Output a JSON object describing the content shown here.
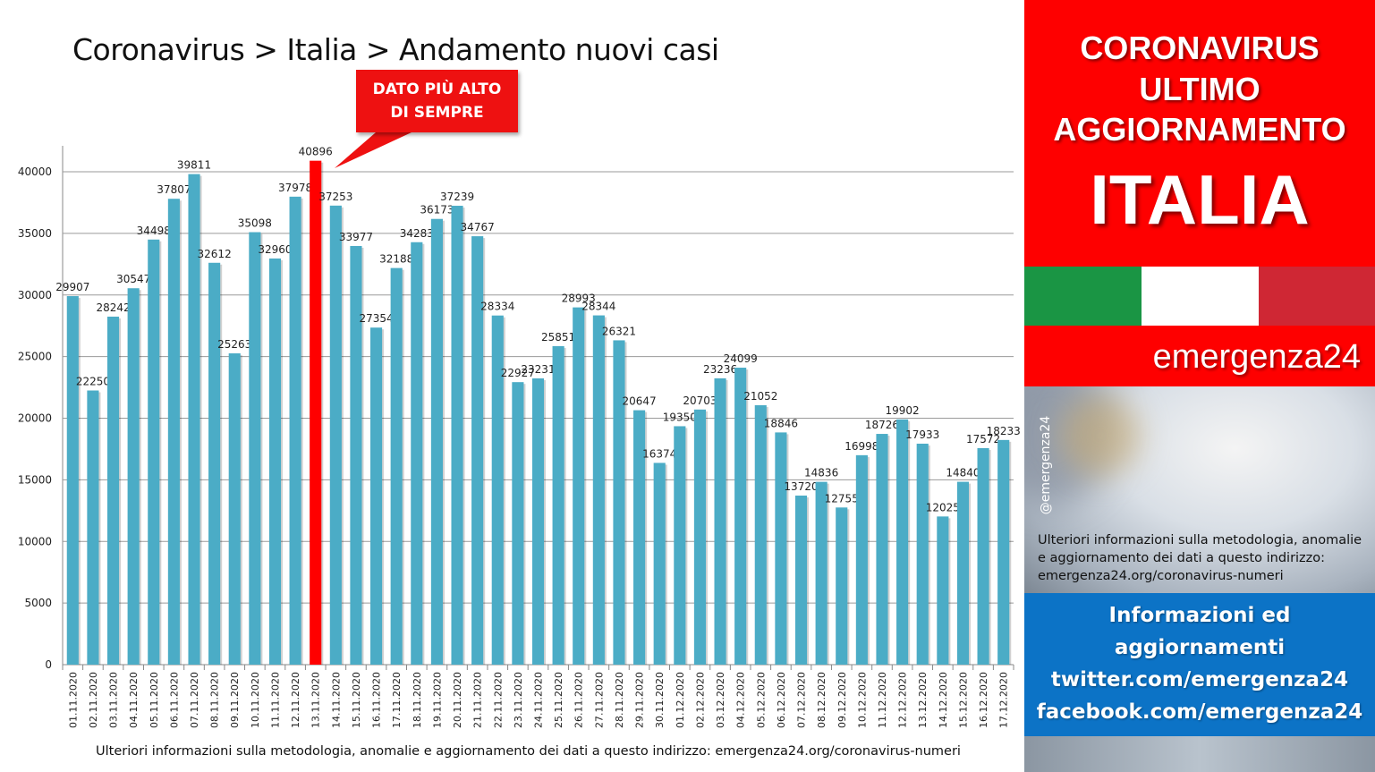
{
  "title": "Coronavirus > Italia > Andamento nuovi casi",
  "callout": {
    "line1": "DATO PIÙ ALTO",
    "line2": "DI SEMPRE"
  },
  "footer_note": "Ulteriori informazioni sulla metodologia, anomalie e aggiornamento dei dati a questo indirizzo: emergenza24.org/coronavirus-numeri",
  "side": {
    "head_line1": "CORONAVIRUS",
    "head_line2": "ULTIMO",
    "head_line3": "AGGIORNAMENTO",
    "head_big": "ITALIA",
    "brand": "emergenza24",
    "handle": "@emergenza24",
    "note_line1": "Ulteriori informazioni sulla metodologia, anomalie",
    "note_line2": "e aggiornamento dei dati a questo indirizzo:",
    "note_line3": "emergenza24.org/coronavirus-numeri",
    "info_line1": "Informazioni ed",
    "info_line2": "aggiornamenti",
    "info_line3": "twitter.com/emergenza24",
    "info_line4": "facebook.com/emergenza24"
  },
  "colors": {
    "bar": "#4bacc6",
    "highlight": "#ff0000",
    "flag_green": "#1a9544",
    "flag_white": "#ffffff",
    "flag_red": "#cf2734",
    "header_red": "#fe0000",
    "info_blue": "#0c73c6"
  },
  "chart_data": {
    "type": "bar",
    "title": "Coronavirus > Italia > Andamento nuovi casi",
    "xlabel": "",
    "ylabel": "",
    "ylim": [
      0,
      40000
    ],
    "yticks": [
      0,
      5000,
      10000,
      15000,
      20000,
      25000,
      30000,
      35000,
      40000
    ],
    "grid": true,
    "highlight_index": 12,
    "categories": [
      "01.11.2020",
      "02.11.2020",
      "03.11.2020",
      "04.11.2020",
      "05.11.2020",
      "06.11.2020",
      "07.11.2020",
      "08.11.2020",
      "09.11.2020",
      "10.11.2020",
      "11.11.2020",
      "12.11.2020",
      "13.11.2020",
      "14.11.2020",
      "15.11.2020",
      "16.11.2020",
      "17.11.2020",
      "18.11.2020",
      "19.11.2020",
      "20.11.2020",
      "21.11.2020",
      "22.11.2020",
      "23.11.2020",
      "24.11.2020",
      "25.11.2020",
      "26.11.2020",
      "27.11.2020",
      "28.11.2020",
      "29.11.2020",
      "30.11.2020",
      "01.12.2020",
      "02.12.2020",
      "03.12.2020",
      "04.12.2020",
      "05.12.2020",
      "06.12.2020",
      "07.12.2020",
      "08.12.2020",
      "09.12.2020",
      "10.12.2020",
      "11.12.2020",
      "12.12.2020",
      "13.12.2020",
      "14.12.2020",
      "15.12.2020",
      "16.12.2020",
      "17.12.2020"
    ],
    "values": [
      29907,
      22250,
      28242,
      30547,
      34498,
      37807,
      39811,
      32612,
      25263,
      35098,
      32960,
      37978,
      40896,
      37253,
      33977,
      27354,
      32188,
      34283,
      36173,
      37239,
      34767,
      28334,
      22927,
      23231,
      25851,
      28993,
      28344,
      26321,
      20647,
      16374,
      19350,
      20703,
      23236,
      24099,
      21052,
      18846,
      13720,
      14836,
      12755,
      16998,
      18726,
      19902,
      17933,
      12025,
      14840,
      17572,
      18233
    ]
  }
}
